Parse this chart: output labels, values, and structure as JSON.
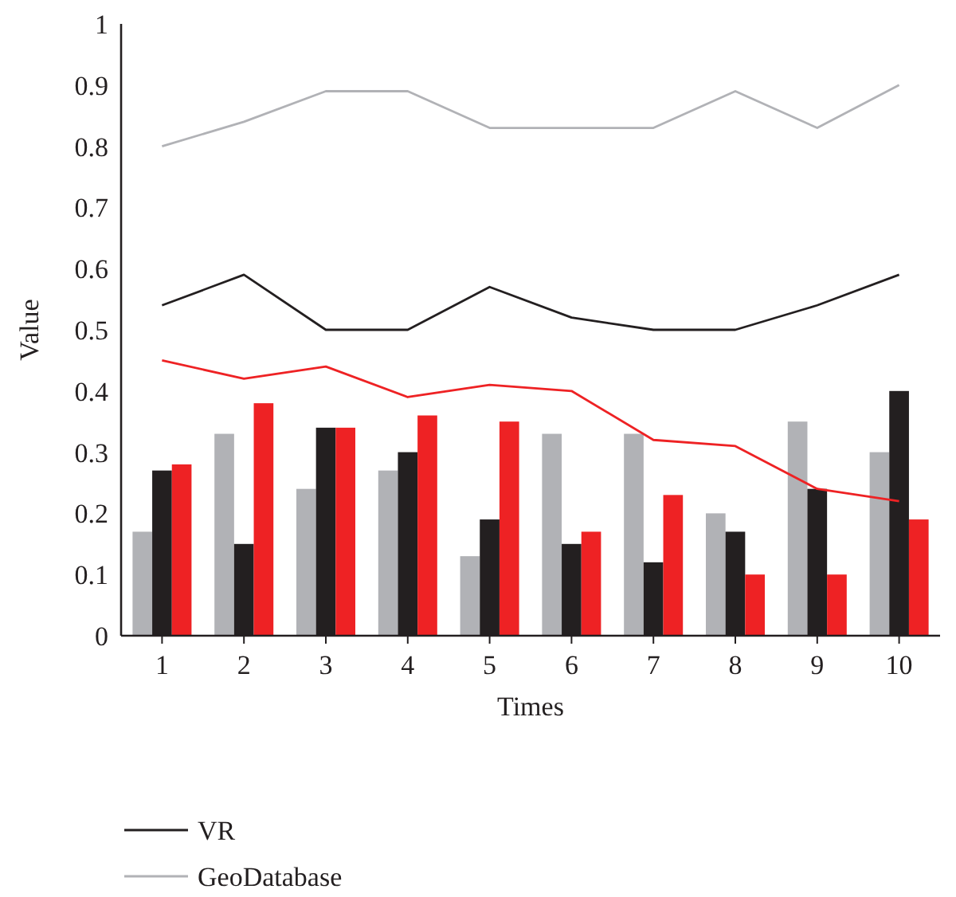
{
  "chart_data": {
    "type": "bar",
    "xlabel": "Times",
    "ylabel": "Value",
    "categories": [
      "1",
      "2",
      "3",
      "4",
      "5",
      "6",
      "7",
      "8",
      "9",
      "10"
    ],
    "ylim": [
      0,
      1
    ],
    "yticks": [
      0,
      0.1,
      0.2,
      0.3,
      0.4,
      0.5,
      0.6,
      0.7,
      0.8,
      0.9,
      1
    ],
    "grid": false,
    "legend": "bottom left",
    "series": [
      {
        "color": "#b1b2b6",
        "values": [
          0.17,
          0.33,
          0.24,
          0.27,
          0.13,
          0.33,
          0.33,
          0.2,
          0.35,
          0.3
        ]
      },
      {
        "color": "#231f20",
        "values": [
          0.27,
          0.15,
          0.34,
          0.3,
          0.19,
          0.15,
          0.12,
          0.17,
          0.24,
          0.4
        ]
      },
      {
        "color": "#ee2224",
        "values": [
          0.28,
          0.38,
          0.34,
          0.36,
          0.35,
          0.17,
          0.23,
          0.1,
          0.1,
          0.19
        ]
      },
      {
        "type": "line",
        "color": "#ee2224",
        "values": [
          0.45,
          0.42,
          0.44,
          0.39,
          0.41,
          0.4,
          0.32,
          0.31,
          0.24,
          0.22
        ]
      },
      {
        "type": "line",
        "name": "VR",
        "color": "#231f20",
        "values": [
          0.54,
          0.59,
          0.5,
          0.5,
          0.57,
          0.52,
          0.5,
          0.5,
          0.54,
          0.59
        ]
      },
      {
        "type": "line",
        "name": "GeoDatabase",
        "color": "#b1b2b6",
        "values": [
          0.8,
          0.84,
          0.89,
          0.89,
          0.83,
          0.83,
          0.83,
          0.89,
          0.83,
          0.9
        ]
      }
    ]
  }
}
